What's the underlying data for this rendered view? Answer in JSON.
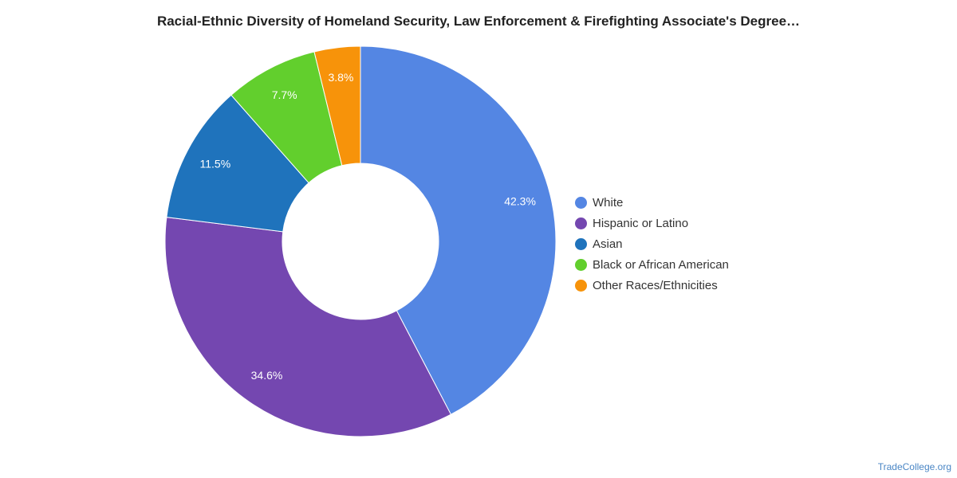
{
  "chart_data": {
    "type": "pie",
    "title": "Racial-Ethnic Diversity of Homeland Security, Law Enforcement & Firefighting Associate's Degree…",
    "categories": [
      "White",
      "Hispanic or Latino",
      "Asian",
      "Black or African American",
      "Other Races/Ethnicities"
    ],
    "values": [
      42.3,
      34.6,
      11.5,
      7.7,
      3.8
    ],
    "value_labels": [
      "42.3%",
      "34.6%",
      "11.5%",
      "7.7%",
      "3.8%"
    ],
    "colors": [
      "#5486e3",
      "#7447b0",
      "#1f73bc",
      "#62cf2d",
      "#f7930a"
    ],
    "donut": true,
    "legend_position": "right"
  },
  "footer": {
    "credit": "TradeCollege.org"
  }
}
